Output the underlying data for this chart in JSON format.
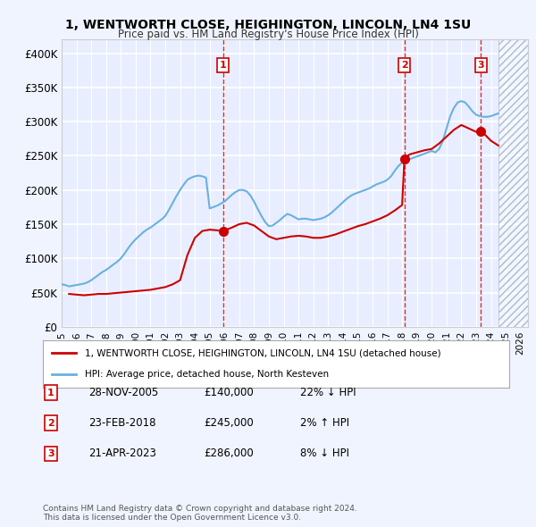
{
  "title": "1, WENTWORTH CLOSE, HEIGHINGTON, LINCOLN, LN4 1SU",
  "subtitle": "Price paid vs. HM Land Registry's House Price Index (HPI)",
  "ylabel": "",
  "xlim_start": 1995.0,
  "xlim_end": 2026.5,
  "ylim": [
    0,
    420000
  ],
  "yticks": [
    0,
    50000,
    100000,
    150000,
    200000,
    250000,
    300000,
    350000,
    400000
  ],
  "ytick_labels": [
    "£0",
    "£50K",
    "£100K",
    "£150K",
    "£200K",
    "£250K",
    "£300K",
    "£350K",
    "£400K"
  ],
  "hpi_color": "#6ab0e0",
  "price_color": "#cc0000",
  "sale_marker_color": "#cc0000",
  "vline_color": "#cc0000",
  "background_color": "#f0f4ff",
  "plot_bg_color": "#e8eeff",
  "grid_color": "#ffffff",
  "transactions": [
    {
      "num": 1,
      "date_x": 2005.91,
      "price": 140000,
      "label": "1",
      "date_str": "28-NOV-2005",
      "price_str": "£140,000",
      "hpi_str": "22% ↓ HPI"
    },
    {
      "num": 2,
      "date_x": 2018.15,
      "price": 245000,
      "label": "2",
      "date_str": "23-FEB-2018",
      "price_str": "£245,000",
      "hpi_str": "2% ↑ HPI"
    },
    {
      "num": 3,
      "date_x": 2023.31,
      "price": 286000,
      "label": "3",
      "date_str": "21-APR-2023",
      "price_str": "£286,000",
      "hpi_str": "8% ↓ HPI"
    }
  ],
  "legend_line1": "1, WENTWORTH CLOSE, HEIGHINGTON, LINCOLN, LN4 1SU (detached house)",
  "legend_line2": "HPI: Average price, detached house, North Kesteven",
  "footnote": "Contains HM Land Registry data © Crown copyright and database right 2024.\nThis data is licensed under the Open Government Licence v3.0.",
  "hpi_data_x": [
    1995.0,
    1995.25,
    1995.5,
    1995.75,
    1996.0,
    1996.25,
    1996.5,
    1996.75,
    1997.0,
    1997.25,
    1997.5,
    1997.75,
    1998.0,
    1998.25,
    1998.5,
    1998.75,
    1999.0,
    1999.25,
    1999.5,
    1999.75,
    2000.0,
    2000.25,
    2000.5,
    2000.75,
    2001.0,
    2001.25,
    2001.5,
    2001.75,
    2002.0,
    2002.25,
    2002.5,
    2002.75,
    2003.0,
    2003.25,
    2003.5,
    2003.75,
    2004.0,
    2004.25,
    2004.5,
    2004.75,
    2005.0,
    2005.25,
    2005.5,
    2005.75,
    2006.0,
    2006.25,
    2006.5,
    2006.75,
    2007.0,
    2007.25,
    2007.5,
    2007.75,
    2008.0,
    2008.25,
    2008.5,
    2008.75,
    2009.0,
    2009.25,
    2009.5,
    2009.75,
    2010.0,
    2010.25,
    2010.5,
    2010.75,
    2011.0,
    2011.25,
    2011.5,
    2011.75,
    2012.0,
    2012.25,
    2012.5,
    2012.75,
    2013.0,
    2013.25,
    2013.5,
    2013.75,
    2014.0,
    2014.25,
    2014.5,
    2014.75,
    2015.0,
    2015.25,
    2015.5,
    2015.75,
    2016.0,
    2016.25,
    2016.5,
    2016.75,
    2017.0,
    2017.25,
    2017.5,
    2017.75,
    2018.0,
    2018.25,
    2018.5,
    2018.75,
    2019.0,
    2019.25,
    2019.5,
    2019.75,
    2020.0,
    2020.25,
    2020.5,
    2020.75,
    2021.0,
    2021.25,
    2021.5,
    2021.75,
    2022.0,
    2022.25,
    2022.5,
    2022.75,
    2023.0,
    2023.25,
    2023.5,
    2023.75,
    2024.0,
    2024.25,
    2024.5
  ],
  "hpi_data_y": [
    62000,
    61000,
    59000,
    60000,
    61000,
    62000,
    63000,
    65000,
    68000,
    72000,
    76000,
    80000,
    83000,
    87000,
    91000,
    95000,
    100000,
    107000,
    115000,
    122000,
    128000,
    133000,
    138000,
    142000,
    145000,
    149000,
    153000,
    157000,
    162000,
    171000,
    181000,
    191000,
    200000,
    208000,
    215000,
    218000,
    220000,
    221000,
    220000,
    218000,
    173000,
    175000,
    177000,
    180000,
    183000,
    188000,
    193000,
    197000,
    200000,
    200000,
    198000,
    192000,
    183000,
    172000,
    162000,
    153000,
    147000,
    148000,
    152000,
    156000,
    161000,
    165000,
    163000,
    160000,
    157000,
    158000,
    158000,
    157000,
    156000,
    157000,
    158000,
    160000,
    163000,
    167000,
    172000,
    177000,
    182000,
    187000,
    191000,
    194000,
    196000,
    198000,
    200000,
    202000,
    205000,
    208000,
    210000,
    212000,
    215000,
    220000,
    228000,
    235000,
    240000,
    243000,
    245000,
    247000,
    249000,
    251000,
    253000,
    255000,
    257000,
    255000,
    260000,
    272000,
    290000,
    308000,
    320000,
    328000,
    330000,
    328000,
    322000,
    315000,
    310000,
    308000,
    307000,
    307000,
    308000,
    310000,
    312000
  ],
  "price_data_x": [
    1995.5,
    1996.0,
    1996.5,
    1997.0,
    1997.5,
    1998.0,
    1998.5,
    1999.0,
    1999.5,
    2000.0,
    2000.5,
    2001.0,
    2001.5,
    2002.0,
    2002.5,
    2003.0,
    2003.5,
    2004.0,
    2004.5,
    2005.0,
    2005.5,
    2005.91,
    2006.5,
    2007.0,
    2007.5,
    2008.0,
    2008.5,
    2009.0,
    2009.5,
    2010.0,
    2010.5,
    2011.0,
    2011.5,
    2012.0,
    2012.5,
    2013.0,
    2013.5,
    2014.0,
    2014.5,
    2015.0,
    2015.5,
    2016.0,
    2016.5,
    2017.0,
    2017.5,
    2018.0,
    2018.15,
    2018.5,
    2019.0,
    2019.5,
    2020.0,
    2020.5,
    2021.0,
    2021.5,
    2022.0,
    2022.5,
    2023.0,
    2023.31,
    2023.5,
    2024.0,
    2024.5
  ],
  "price_data_y": [
    48000,
    47000,
    46000,
    47000,
    48000,
    48000,
    49000,
    50000,
    51000,
    52000,
    53000,
    54000,
    56000,
    58000,
    62000,
    68000,
    105000,
    130000,
    140000,
    142000,
    141000,
    140000,
    145000,
    150000,
    152000,
    148000,
    140000,
    132000,
    128000,
    130000,
    132000,
    133000,
    132000,
    130000,
    130000,
    132000,
    135000,
    139000,
    143000,
    147000,
    150000,
    154000,
    158000,
    163000,
    170000,
    178000,
    245000,
    252000,
    255000,
    258000,
    260000,
    268000,
    278000,
    288000,
    295000,
    290000,
    285000,
    286000,
    283000,
    272000,
    265000
  ]
}
